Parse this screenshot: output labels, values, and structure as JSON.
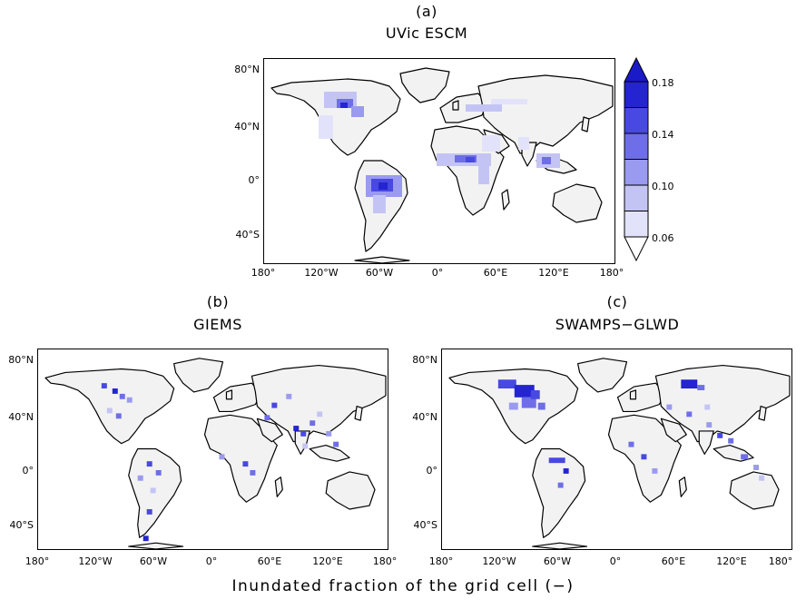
{
  "panels": [
    {
      "id": "a",
      "letter": "(a)",
      "title": "UVic ESCM"
    },
    {
      "id": "b",
      "letter": "(b)",
      "title": "GIEMS"
    },
    {
      "id": "c",
      "letter": "(c)",
      "title": "SWAMPS−GLWD"
    }
  ],
  "lat_labels": [
    "80°N",
    "40°N",
    "0°",
    "40°S"
  ],
  "lon_labels": [
    "180°",
    "120°W",
    "60°W",
    "0°",
    "60°E",
    "120°E",
    "180°"
  ],
  "colorbar": {
    "labels": [
      "0.18",
      "0.14",
      "0.10",
      "0.06"
    ],
    "colors": [
      "#2424d0",
      "#4848e2",
      "#6e6ee8",
      "#9a9af0",
      "#c4c4f4",
      "#e2e2fa"
    ],
    "under_color": "#ffffff",
    "over_color": "#1a1ac8"
  },
  "caption": "Inundated fraction of the grid cell (−)",
  "map_colors": {
    "ocean": "#ffffff",
    "land_base": "#f2f2f2",
    "coast": "#000000"
  }
}
